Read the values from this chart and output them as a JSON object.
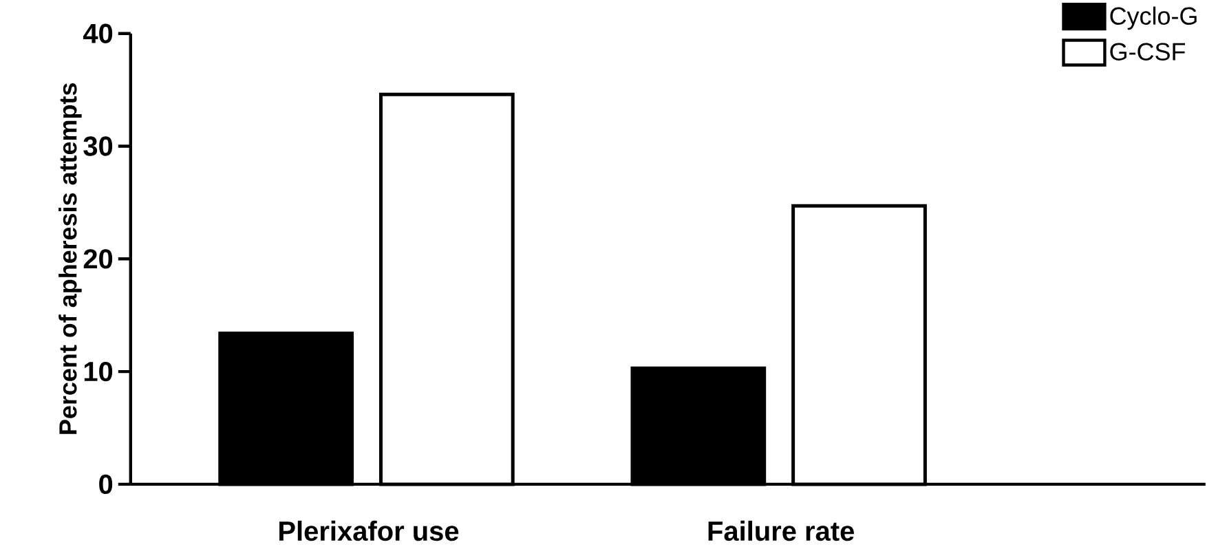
{
  "chart_data": {
    "type": "bar",
    "ylabel": "Percent of apheresis attempts",
    "categories": [
      "Plerixafor use",
      "Failure rate"
    ],
    "series": [
      {
        "name": "Cyclo-G",
        "color": "#000000",
        "values": [
          13.4,
          10.3
        ]
      },
      {
        "name": "G-CSF",
        "color": "#ffffff",
        "values": [
          34.6,
          24.7
        ]
      }
    ],
    "ylim": [
      0,
      40
    ],
    "yticks": [
      0,
      10,
      20,
      30,
      40
    ],
    "grid": false,
    "legend": "top right"
  }
}
